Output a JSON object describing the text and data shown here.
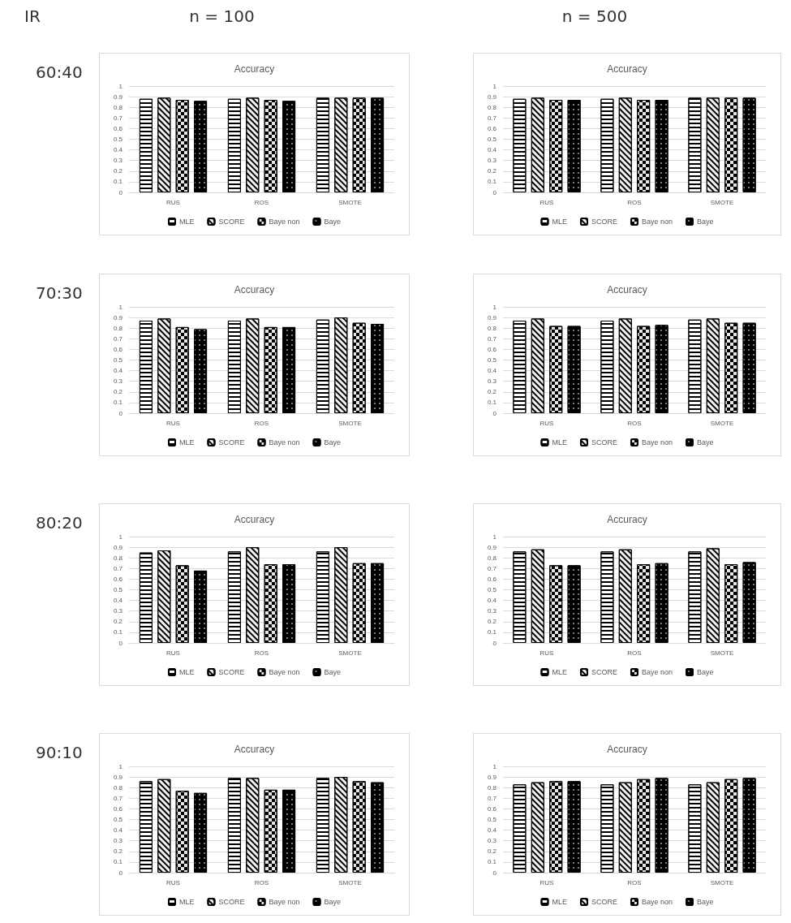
{
  "chart_data": [
    {
      "type": "bar",
      "title": "Accuracy",
      "annotations": [
        "IR",
        "n = 100",
        "60:40"
      ],
      "categories": [
        "RUS",
        "ROS",
        "SMOTE"
      ],
      "ylim": [
        0,
        1
      ],
      "yticks": [
        0,
        0.1,
        0.2,
        0.3,
        0.4,
        0.5,
        0.6,
        0.7,
        0.8,
        0.9,
        1
      ],
      "grid": "y",
      "legend": "bottom",
      "series": [
        {
          "name": "MLE",
          "color": "#ffffff",
          "values": [
            0.88,
            0.88,
            0.89
          ]
        },
        {
          "name": "SCORE",
          "color": "#f2f2f2",
          "values": [
            0.89,
            0.89,
            0.89
          ]
        },
        {
          "name": "Baye non",
          "color": "#e6e6e6",
          "values": [
            0.87,
            0.87,
            0.89
          ]
        },
        {
          "name": "Baye",
          "color": "#000000",
          "values": [
            0.86,
            0.86,
            0.89
          ]
        }
      ]
    },
    {
      "type": "bar",
      "title": "Accuracy",
      "annotations": [
        "n = 500"
      ],
      "categories": [
        "RUS",
        "ROS",
        "SMOTE"
      ],
      "ylim": [
        0,
        1
      ],
      "yticks": [
        0,
        0.1,
        0.2,
        0.3,
        0.4,
        0.5,
        0.6,
        0.7,
        0.8,
        0.9,
        1
      ],
      "grid": "y",
      "legend": "bottom",
      "series": [
        {
          "name": "MLE",
          "color": "#ffffff",
          "values": [
            0.88,
            0.88,
            0.89
          ]
        },
        {
          "name": "SCORE",
          "color": "#f2f2f2",
          "values": [
            0.89,
            0.89,
            0.89
          ]
        },
        {
          "name": "Baye non",
          "color": "#e6e6e6",
          "values": [
            0.87,
            0.87,
            0.89
          ]
        },
        {
          "name": "Baye",
          "color": "#000000",
          "values": [
            0.87,
            0.87,
            0.89
          ]
        }
      ]
    },
    {
      "type": "bar",
      "title": "Accuracy",
      "annotations": [
        "70:30"
      ],
      "categories": [
        "RUS",
        "ROS",
        "SMOTE"
      ],
      "ylim": [
        0,
        1
      ],
      "yticks": [
        0,
        0.1,
        0.2,
        0.3,
        0.4,
        0.5,
        0.6,
        0.7,
        0.8,
        0.9,
        1
      ],
      "grid": "y",
      "legend": "bottom",
      "series": [
        {
          "name": "MLE",
          "color": "#ffffff",
          "values": [
            0.87,
            0.87,
            0.88
          ]
        },
        {
          "name": "SCORE",
          "color": "#f2f2f2",
          "values": [
            0.89,
            0.89,
            0.9
          ]
        },
        {
          "name": "Baye non",
          "color": "#e6e6e6",
          "values": [
            0.81,
            0.81,
            0.85
          ]
        },
        {
          "name": "Baye",
          "color": "#000000",
          "values": [
            0.79,
            0.81,
            0.84
          ]
        }
      ]
    },
    {
      "type": "bar",
      "title": "Accuracy",
      "categories": [
        "RUS",
        "ROS",
        "SMOTE"
      ],
      "ylim": [
        0,
        1
      ],
      "yticks": [
        0,
        0.1,
        0.2,
        0.3,
        0.4,
        0.5,
        0.6,
        0.7,
        0.8,
        0.9,
        1
      ],
      "grid": "y",
      "legend": "bottom",
      "series": [
        {
          "name": "MLE",
          "color": "#ffffff",
          "values": [
            0.87,
            0.87,
            0.88
          ]
        },
        {
          "name": "SCORE",
          "color": "#f2f2f2",
          "values": [
            0.89,
            0.89,
            0.89
          ]
        },
        {
          "name": "Baye non",
          "color": "#e6e6e6",
          "values": [
            0.82,
            0.82,
            0.85
          ]
        },
        {
          "name": "Baye",
          "color": "#000000",
          "values": [
            0.82,
            0.83,
            0.85
          ]
        }
      ]
    },
    {
      "type": "bar",
      "title": "Accuracy",
      "annotations": [
        "80:20"
      ],
      "categories": [
        "RUS",
        "ROS",
        "SMOTE"
      ],
      "ylim": [
        0,
        1
      ],
      "yticks": [
        0,
        0.1,
        0.2,
        0.3,
        0.4,
        0.5,
        0.6,
        0.7,
        0.8,
        0.9,
        1
      ],
      "grid": "y",
      "legend": "bottom",
      "series": [
        {
          "name": "MLE",
          "color": "#ffffff",
          "values": [
            0.85,
            0.86,
            0.86
          ]
        },
        {
          "name": "SCORE",
          "color": "#f2f2f2",
          "values": [
            0.87,
            0.9,
            0.9
          ]
        },
        {
          "name": "Baye non",
          "color": "#e6e6e6",
          "values": [
            0.73,
            0.74,
            0.75
          ]
        },
        {
          "name": "Baye",
          "color": "#000000",
          "values": [
            0.68,
            0.74,
            0.75
          ]
        }
      ]
    },
    {
      "type": "bar",
      "title": "Accuracy",
      "categories": [
        "RUS",
        "ROS",
        "SMOTE"
      ],
      "ylim": [
        0,
        1
      ],
      "yticks": [
        0,
        0.1,
        0.2,
        0.3,
        0.4,
        0.5,
        0.6,
        0.7,
        0.8,
        0.9,
        1
      ],
      "grid": "y",
      "legend": "bottom",
      "series": [
        {
          "name": "MLE",
          "color": "#ffffff",
          "values": [
            0.86,
            0.86,
            0.86
          ]
        },
        {
          "name": "SCORE",
          "color": "#f2f2f2",
          "values": [
            0.88,
            0.88,
            0.89
          ]
        },
        {
          "name": "Baye non",
          "color": "#e6e6e6",
          "values": [
            0.73,
            0.74,
            0.74
          ]
        },
        {
          "name": "Baye",
          "color": "#000000",
          "values": [
            0.73,
            0.75,
            0.76
          ]
        }
      ]
    },
    {
      "type": "bar",
      "title": "Accuracy",
      "annotations": [
        "90:10"
      ],
      "categories": [
        "RUS",
        "ROS",
        "SMOTE"
      ],
      "ylim": [
        0,
        1
      ],
      "yticks": [
        0,
        0.1,
        0.2,
        0.3,
        0.4,
        0.5,
        0.6,
        0.7,
        0.8,
        0.9,
        1
      ],
      "grid": "y",
      "legend": "bottom",
      "series": [
        {
          "name": "MLE",
          "color": "#ffffff",
          "values": [
            0.86,
            0.89,
            0.89
          ]
        },
        {
          "name": "SCORE",
          "color": "#f2f2f2",
          "values": [
            0.88,
            0.89,
            0.9
          ]
        },
        {
          "name": "Baye non",
          "color": "#e6e6e6",
          "values": [
            0.77,
            0.78,
            0.86
          ]
        },
        {
          "name": "Baye",
          "color": "#000000",
          "values": [
            0.75,
            0.78,
            0.85
          ]
        }
      ]
    },
    {
      "type": "bar",
      "title": "Accuracy",
      "categories": [
        "RUS",
        "ROS",
        "SMOTE"
      ],
      "ylim": [
        0,
        1
      ],
      "yticks": [
        0,
        0.1,
        0.2,
        0.3,
        0.4,
        0.5,
        0.6,
        0.7,
        0.8,
        0.9,
        1
      ],
      "grid": "y",
      "legend": "bottom",
      "series": [
        {
          "name": "MLE",
          "color": "#ffffff",
          "values": [
            0.83,
            0.83,
            0.83
          ]
        },
        {
          "name": "SCORE",
          "color": "#f2f2f2",
          "values": [
            0.85,
            0.85,
            0.85
          ]
        },
        {
          "name": "Baye non",
          "color": "#e6e6e6",
          "values": [
            0.86,
            0.88,
            0.88
          ]
        },
        {
          "name": "Baye",
          "color": "#000000",
          "values": [
            0.86,
            0.89,
            0.89
          ]
        }
      ]
    }
  ]
}
